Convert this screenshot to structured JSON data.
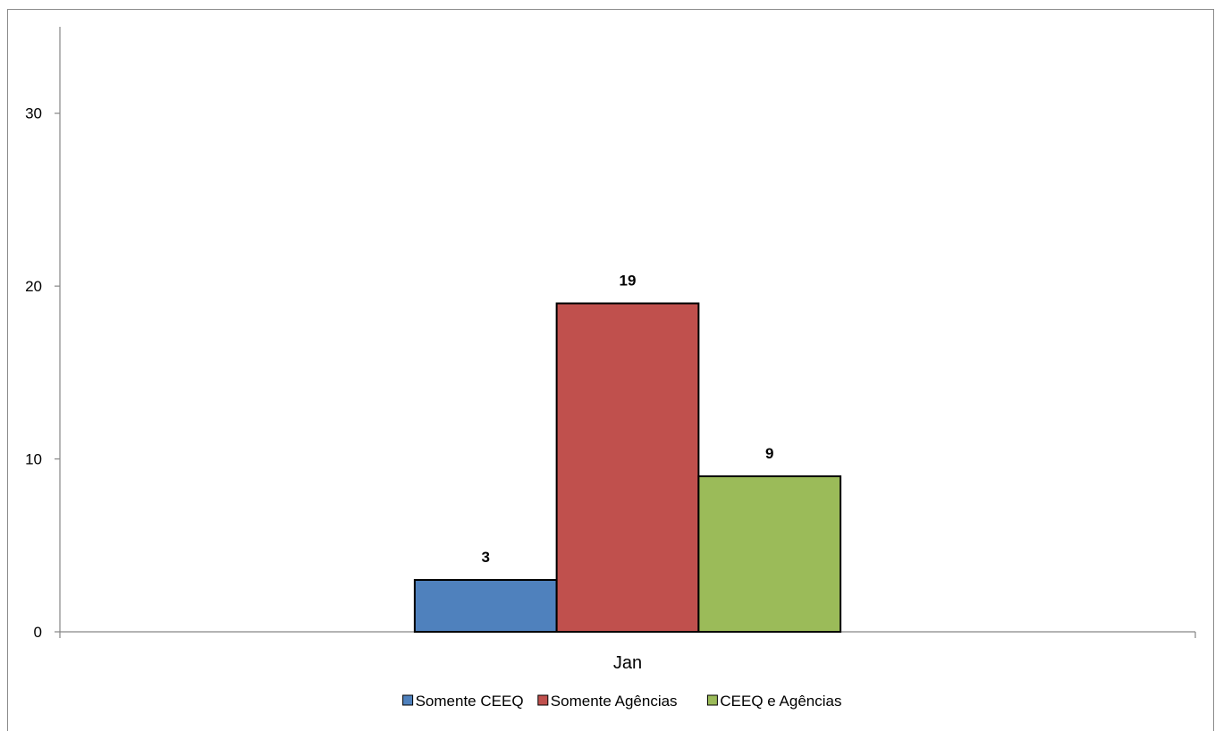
{
  "chart_data": {
    "type": "bar",
    "categories": [
      "Jan"
    ],
    "series": [
      {
        "name": "Somente CEEQ",
        "values": [
          3
        ],
        "color": "#4f81bd"
      },
      {
        "name": "Somente Agências",
        "values": [
          19
        ],
        "color": "#c0504d"
      },
      {
        "name": "CEEQ e Agências",
        "values": [
          9
        ],
        "color": "#9bbb59"
      }
    ],
    "title": "",
    "xlabel": "",
    "ylabel": "",
    "ylim": [
      0,
      35
    ],
    "yticks": [
      0,
      10,
      20,
      30
    ],
    "grid": false,
    "legend_position": "bottom",
    "show_data_labels": true
  }
}
